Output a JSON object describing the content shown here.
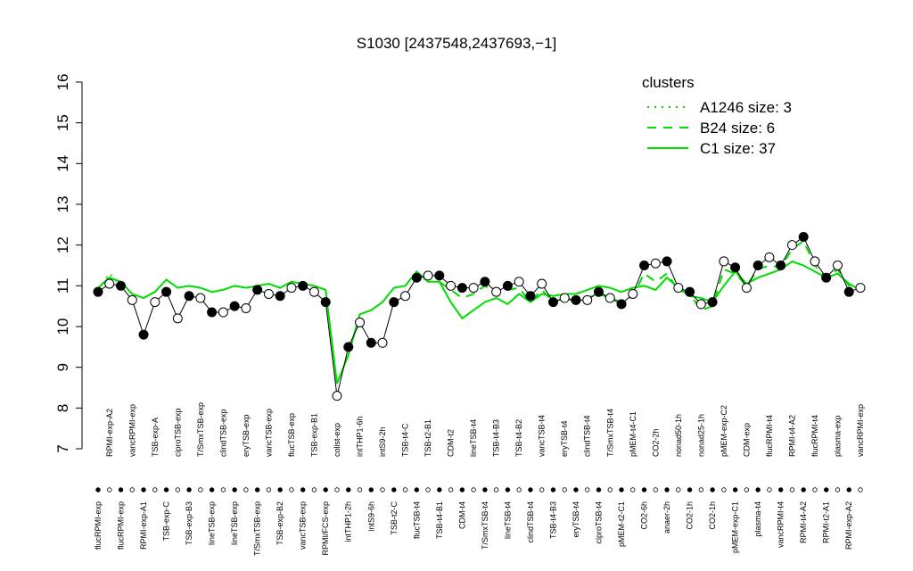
{
  "chart_data": {
    "type": "line",
    "title": "S1030 [2437548,2437693,−1]",
    "categories": [
      "flucRPMI-exp",
      "RPMI-exp-A2",
      "flucRPMI-exp",
      "vancRPMI-exp",
      "RPMI-exp-A1",
      "TSB-exp-A",
      "TSB-exp-C",
      "ciproTSB-exp",
      "TSB-exp-B3",
      "T/SmxTSB-exp",
      "lineTSB-exp",
      "clindTSB-exp",
      "lineTSB-exp",
      "eryTSB-exp",
      "T/SmxTSB-exp",
      "vancTSB-exp",
      "TSB-exp-B2",
      "flucTSB-exp",
      "vancTSB-exp",
      "TSB-exp-B1",
      "RPMI/FCS-exp",
      "colist-exp",
      "intTHP1-2h",
      "intTHP1-6h",
      "intS9-6h",
      "intS9-2h",
      "TSB-t2-C",
      "TSB-t4-C",
      "flucTSB-t4",
      "TSB-t2-B1",
      "TSB-t4-B1",
      "CDM-t2",
      "CDM-t4",
      "lineTSB-t4",
      "T/SmxTSB-t4",
      "TSB-t4-B3",
      "lineTSB-t4",
      "TSB-t4-B2",
      "clindTSB-t4",
      "vancTSB-t4",
      "TSB-t4-B3",
      "eryTSB-t4",
      "eryTSB-t4",
      "clindTSB-t4",
      "ciproTSB-t4",
      "T/SmxTSB-t4",
      "pMEM-t2-C1",
      "pMEM-t4-C1",
      "CO2-6h",
      "CO2-2h",
      "anaer-2h",
      "nonad50-1h",
      "CO2-1h",
      "nonad25-1h",
      "CO2-1h",
      "pMEM-exp-C2",
      "pMEM-exp-C1",
      "CDM-exp",
      "plasma-t4",
      "flucRPMI-t4",
      "vancRPMI-t4",
      "RPMI-t4-A2",
      "RPMI-t4-A2",
      "flucRPMI-t4",
      "RPMI-t2-A1",
      "plasma-exp",
      "RPMI-exp-A2",
      "vancRPMI-exp"
    ],
    "values": [
      10.85,
      11.05,
      11.0,
      10.65,
      9.8,
      10.6,
      10.85,
      10.2,
      10.75,
      10.7,
      10.35,
      10.35,
      10.5,
      10.45,
      10.9,
      10.8,
      10.75,
      10.95,
      11.0,
      10.85,
      10.6,
      8.3,
      9.5,
      10.1,
      9.6,
      9.6,
      10.6,
      10.75,
      11.2,
      11.25,
      11.25,
      11.0,
      10.95,
      10.95,
      11.1,
      10.85,
      11.0,
      11.1,
      10.75,
      11.05,
      10.6,
      10.7,
      10.65,
      10.65,
      10.85,
      10.7,
      10.55,
      10.8,
      11.5,
      11.55,
      11.6,
      10.95,
      10.85,
      10.55,
      10.6,
      11.6,
      11.45,
      10.95,
      11.5,
      11.7,
      11.5,
      12.0,
      12.2,
      11.6,
      11.2,
      11.5,
      10.85,
      10.95
    ],
    "point_color": "#000000",
    "legend_title": "clusters",
    "legend_position": "top-right",
    "series": [
      {
        "name": "A1246 size: 3",
        "color": "#00dd00",
        "dash": "dotted",
        "values": [
          10.9,
          11.3,
          11.0,
          null,
          null,
          null,
          null,
          null,
          null,
          null,
          null,
          null,
          null,
          null,
          null,
          null,
          null,
          null,
          null,
          null,
          null,
          null,
          null,
          null,
          null,
          null,
          null,
          null,
          null,
          null,
          null,
          null,
          null,
          null,
          null,
          null,
          null,
          null,
          null,
          null,
          null,
          null,
          null,
          null,
          null,
          null,
          null,
          null,
          null,
          null,
          null,
          null,
          null,
          null,
          null,
          null,
          null,
          null,
          null,
          null,
          null,
          null,
          null,
          null,
          null,
          null,
          null,
          null
        ]
      },
      {
        "name": "B24 size: 6",
        "color": "#00dd00",
        "dash": "dashed",
        "values": [
          null,
          null,
          null,
          null,
          null,
          null,
          null,
          null,
          null,
          null,
          null,
          null,
          null,
          null,
          null,
          null,
          null,
          null,
          null,
          null,
          null,
          null,
          null,
          null,
          null,
          null,
          null,
          null,
          null,
          null,
          11.1,
          10.9,
          10.7,
          10.8,
          11.0,
          10.8,
          10.9,
          10.95,
          10.6,
          10.9,
          10.6,
          10.7,
          10.6,
          10.7,
          10.8,
          10.7,
          10.6,
          10.75,
          11.3,
          11.1,
          11.3,
          10.9,
          10.8,
          10.4,
          10.5,
          11.4,
          11.3,
          11.0,
          11.4,
          11.5,
          11.45,
          11.9,
          12.1,
          11.5,
          11.2,
          11.4,
          11.0,
          10.9
        ]
      },
      {
        "name": "C1 size: 37",
        "color": "#00dd00",
        "dash": "solid",
        "values": [
          10.95,
          11.2,
          11.1,
          10.8,
          10.7,
          10.85,
          11.15,
          10.95,
          11.0,
          10.95,
          10.85,
          10.9,
          11.0,
          10.95,
          11.0,
          11.05,
          10.95,
          11.1,
          11.05,
          11.0,
          10.9,
          8.6,
          9.3,
          10.3,
          10.4,
          10.6,
          10.95,
          11.0,
          11.35,
          11.1,
          11.1,
          10.6,
          10.2,
          10.4,
          10.6,
          10.7,
          10.55,
          10.8,
          10.6,
          10.8,
          10.75,
          10.8,
          10.8,
          10.9,
          11.0,
          10.95,
          10.85,
          10.95,
          11.0,
          10.9,
          11.2,
          10.95,
          10.75,
          10.7,
          10.6,
          11.0,
          11.35,
          11.05,
          11.2,
          11.3,
          11.4,
          11.6,
          11.5,
          11.35,
          11.2,
          11.3,
          11.05,
          10.9
        ]
      }
    ],
    "ylim": [
      7,
      16
    ],
    "yticks": [
      7,
      8,
      9,
      10,
      11,
      12,
      13,
      14,
      15,
      16
    ]
  }
}
